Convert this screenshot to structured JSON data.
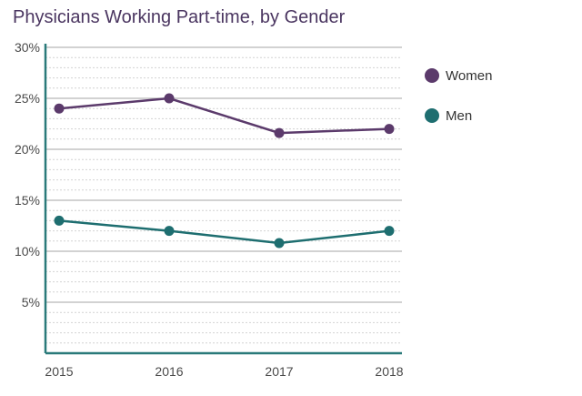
{
  "chart_data": {
    "type": "line",
    "title": "Physicians Working Part-time, by Gender",
    "xlabel": "",
    "ylabel": "",
    "categories": [
      "2015",
      "2016",
      "2017",
      "2018"
    ],
    "series": [
      {
        "name": "Women",
        "color": "#5b3a6b",
        "values": [
          24,
          25,
          21.6,
          22
        ]
      },
      {
        "name": "Men",
        "color": "#1e6e70",
        "values": [
          13,
          12,
          10.8,
          12
        ]
      }
    ],
    "ylim": [
      0,
      30
    ],
    "yticks": [
      5,
      10,
      15,
      20,
      25,
      30
    ],
    "ytick_labels": [
      "5%",
      "10%",
      "15%",
      "20%",
      "25%",
      "30%"
    ],
    "grid": true,
    "legend_position": "right",
    "colors": {
      "axis": "#2a7a7a",
      "grid": "#c8c8c8",
      "title": "#4a3560"
    }
  }
}
